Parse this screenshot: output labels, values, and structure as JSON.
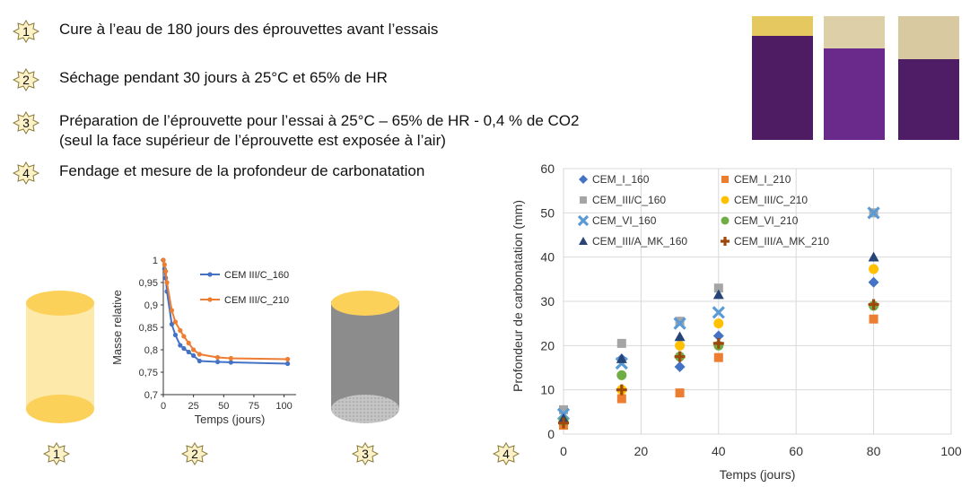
{
  "steps": [
    {
      "num": "1",
      "text": "Cure à l’eau de 180 jours des éprouvettes avant l’essais"
    },
    {
      "num": "2",
      "text": "Séchage pendant 30 jours à 25°C et 65% de HR"
    },
    {
      "num": "3",
      "text": "Préparation de l’éprouvette pour l’essai à 25°C – 65% de HR - 0,4 % de CO2",
      "text2": "(seul la face supérieur de l’éprouvette est exposée à l’air)"
    },
    {
      "num": "4",
      "text": "Fendage et mesure de la profondeur de carbonatation"
    }
  ],
  "bottom_badges": [
    "1",
    "2",
    "3",
    "4"
  ],
  "colors": {
    "cylinder_yellow": "#fde59a",
    "cylinder_cap": "#fcd15a",
    "cylinder_gray": "#8c8c8c",
    "photo_purple": "#5a1f6e",
    "photo_top": "#d8c89a"
  },
  "chart_data": [
    {
      "type": "line",
      "xlabel": "Temps (jours)",
      "ylabel": "Masse relative",
      "xlim": [
        0,
        110
      ],
      "ylim": [
        0.7,
        1.0
      ],
      "xticks": [
        "0",
        "25",
        "50",
        "75",
        "100"
      ],
      "yticks": [
        "1",
        "0,95",
        "0,9",
        "0,85",
        "0,8",
        "0,75",
        "0,7"
      ],
      "legend_placement": "right",
      "series": [
        {
          "name": "CEM III/C_160",
          "color": "#4472c4",
          "x": [
            0,
            1,
            2,
            3,
            7,
            10,
            14,
            17,
            21,
            25,
            30,
            45,
            56,
            103
          ],
          "y": [
            1.0,
            0.98,
            0.96,
            0.93,
            0.857,
            0.833,
            0.81,
            0.803,
            0.795,
            0.787,
            0.775,
            0.773,
            0.772,
            0.769
          ]
        },
        {
          "name": "CEM III/C_210",
          "color": "#ed7d31",
          "x": [
            0,
            1,
            2,
            3,
            7,
            10,
            14,
            17,
            21,
            25,
            30,
            45,
            56,
            103
          ],
          "y": [
            1.0,
            0.99,
            0.975,
            0.95,
            0.888,
            0.862,
            0.843,
            0.83,
            0.815,
            0.8,
            0.79,
            0.783,
            0.781,
            0.779
          ]
        }
      ]
    },
    {
      "type": "scatter",
      "xlabel": "Temps (jours)",
      "ylabel": "Profondeur de carbonatation (mm)",
      "xlim": [
        0,
        100
      ],
      "ylim": [
        0,
        60
      ],
      "xticks": [
        "0",
        "20",
        "40",
        "60",
        "80",
        "100"
      ],
      "yticks": [
        "0",
        "10",
        "20",
        "30",
        "40",
        "50",
        "60"
      ],
      "grid": true,
      "legend_placement": "top-left",
      "series": [
        {
          "name": "CEM_I_160",
          "color": "#4472c4",
          "marker": "diamond",
          "x": [
            0,
            15,
            30,
            40,
            80
          ],
          "y": [
            3.5,
            17,
            15.2,
            22.2,
            34.3
          ]
        },
        {
          "name": "CEM_I_210",
          "color": "#ed7d31",
          "marker": "square",
          "x": [
            0,
            15,
            30,
            40,
            80
          ],
          "y": [
            2.0,
            8.0,
            9.3,
            17.3,
            26.0
          ]
        },
        {
          "name": "CEM_III/C_160",
          "color": "#a5a5a5",
          "marker": "square",
          "x": [
            0,
            15,
            30,
            40,
            80
          ],
          "y": [
            5.5,
            20.5,
            25.5,
            33.0,
            50.0
          ]
        },
        {
          "name": "CEM_III/C_210",
          "color": "#ffc000",
          "marker": "circle",
          "x": [
            0,
            15,
            30,
            40,
            80
          ],
          "y": [
            3.0,
            10.0,
            20.0,
            25.0,
            37.3
          ]
        },
        {
          "name": "CEM_VI_160",
          "color": "#5b9bd5",
          "marker": "x",
          "x": [
            0,
            15,
            30,
            40,
            80
          ],
          "y": [
            4.5,
            16.0,
            25.0,
            27.5,
            50.0
          ]
        },
        {
          "name": "CEM_VI_210",
          "color": "#70ad47",
          "marker": "circle",
          "x": [
            0,
            15,
            30,
            40,
            80
          ],
          "y": [
            3.0,
            13.3,
            17.5,
            20.0,
            29.0
          ]
        },
        {
          "name": "CEM_III/A_MK_160",
          "color": "#264478",
          "marker": "triangle",
          "x": [
            0,
            15,
            30,
            40,
            80
          ],
          "y": [
            3.5,
            17.0,
            22.0,
            31.5,
            40.0
          ]
        },
        {
          "name": "CEM_III/A_MK_210",
          "color": "#9e480e",
          "marker": "plus",
          "x": [
            0,
            15,
            30,
            40,
            80
          ],
          "y": [
            2.5,
            10.0,
            17.5,
            20.5,
            29.3
          ]
        }
      ]
    }
  ]
}
